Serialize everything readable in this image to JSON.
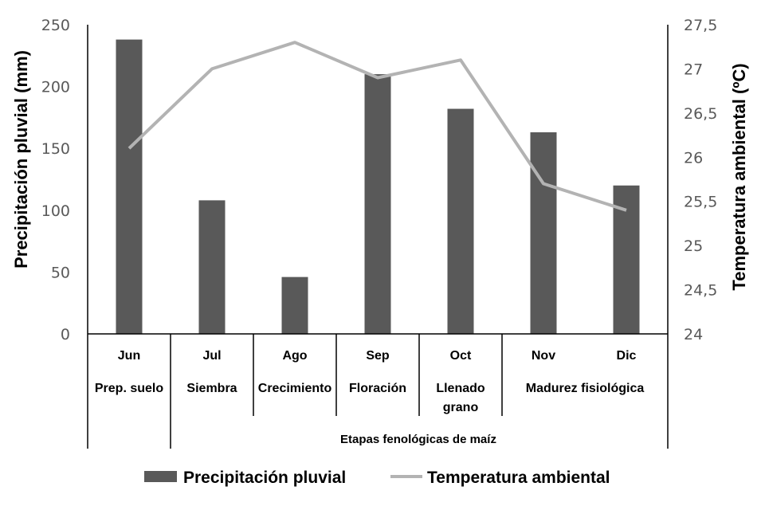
{
  "chart_data": {
    "type": "bar",
    "categories": [
      "Jun",
      "Jul",
      "Ago",
      "Sep",
      "Oct",
      "Nov",
      "Dic"
    ],
    "stages": [
      {
        "label_lines": [
          "Prep. suelo"
        ],
        "span": [
          0,
          0
        ]
      },
      {
        "label_lines": [
          "Siembra"
        ],
        "span": [
          1,
          1
        ]
      },
      {
        "label_lines": [
          "Crecimiento"
        ],
        "span": [
          2,
          2
        ]
      },
      {
        "label_lines": [
          "Floración"
        ],
        "span": [
          3,
          3
        ]
      },
      {
        "label_lines": [
          "Llenado",
          "grano"
        ],
        "span": [
          4,
          4
        ]
      },
      {
        "label_lines": [
          "Madurez fisiológica"
        ],
        "span": [
          5,
          6
        ]
      }
    ],
    "group_title": "Etapas fenológicas de maíz",
    "series": [
      {
        "name": "Precipitación pluvial",
        "type": "bar",
        "axis": "left",
        "color": "#595959",
        "values": [
          238,
          108,
          46,
          210,
          182,
          163,
          120
        ]
      },
      {
        "name": "Temperatura ambiental",
        "type": "line",
        "axis": "right",
        "color": "#b3b3b3",
        "values": [
          26.1,
          27.0,
          27.3,
          26.9,
          27.1,
          25.7,
          25.4
        ]
      }
    ],
    "ylabel": "Precipitación pluvial (mm)",
    "ylabel_right": "Temperatura ambiental (ºC)",
    "ylim": [
      0,
      250
    ],
    "yticks": [
      "0",
      "50",
      "100",
      "150",
      "200",
      "250"
    ],
    "ylim_right": [
      24,
      27.5
    ],
    "yticks_right": [
      "24",
      "24,5",
      "25",
      "25,5",
      "26",
      "26,5",
      "27",
      "27,5"
    ],
    "grid": false,
    "legend_position": "bottom"
  }
}
